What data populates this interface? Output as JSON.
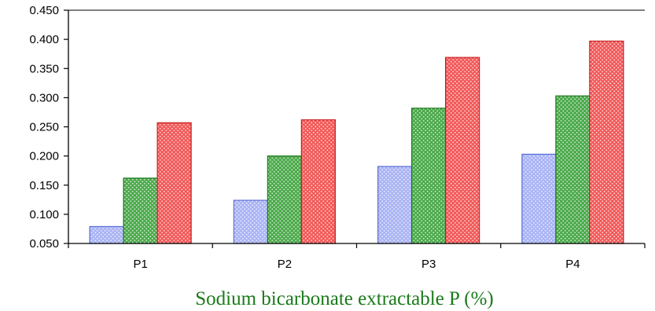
{
  "chart_data": {
    "type": "bar",
    "categories": [
      "P1",
      "P2",
      "P3",
      "P4"
    ],
    "series": [
      {
        "values": [
          0.079,
          0.124,
          0.182,
          0.203
        ],
        "color": "#aab4f4",
        "edge": "#5b6fd6"
      },
      {
        "values": [
          0.162,
          0.2,
          0.282,
          0.303
        ],
        "color": "#4caa4c",
        "edge": "#1e7a1e"
      },
      {
        "values": [
          0.257,
          0.262,
          0.369,
          0.397
        ],
        "color": "#f25a5a",
        "edge": "#c81e1e"
      }
    ],
    "ylim": [
      0.05,
      0.45
    ],
    "yticks": [
      "0.050",
      "0.100",
      "0.150",
      "0.200",
      "0.250",
      "0.300",
      "0.350",
      "0.400",
      "0.450"
    ],
    "xlabel": "Sodium bicarbonate extractable P (%)",
    "xlabel_color": "#1a7a1a",
    "ylabel": "",
    "title": "",
    "legend": false,
    "grid": false,
    "bar_pattern": "dotted"
  }
}
